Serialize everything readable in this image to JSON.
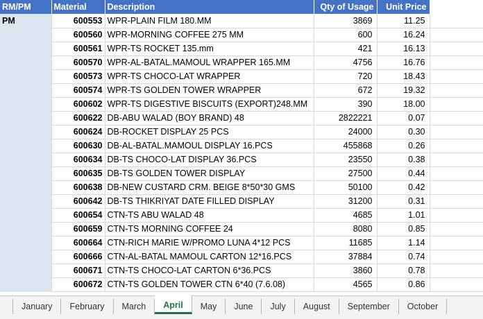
{
  "header": {
    "cat": "RM/PM",
    "material": "Material",
    "description": "Description",
    "qty": "Qty of Usage",
    "price": "Unit Price"
  },
  "category_label": "PM",
  "rows": [
    {
      "material": "600553",
      "description": "WPR-PLAIN FILM 180.MM",
      "qty": "3869",
      "price": "11.25"
    },
    {
      "material": "600560",
      "description": "WPR-MORNING COFFEE 275 MM",
      "qty": "600",
      "price": "16.24"
    },
    {
      "material": "600561",
      "description": "WPR-TS ROCKET 135.mm",
      "qty": "421",
      "price": "16.13"
    },
    {
      "material": "600570",
      "description": "WPR-AL-BATAL.MAMOUL WRAPPER 165.MM",
      "qty": "4756",
      "price": "16.76"
    },
    {
      "material": "600573",
      "description": "WPR-TS CHOCO-LAT WRAPPER",
      "qty": "720",
      "price": "18.43"
    },
    {
      "material": "600574",
      "description": "WPR-TS GOLDEN TOWER WRAPPER",
      "qty": "672",
      "price": "19.32"
    },
    {
      "material": "600602",
      "description": "WPR-TS DIGESTIVE BISCUITS (EXPORT)248.MM",
      "qty": "390",
      "price": "18.00"
    },
    {
      "material": "600622",
      "description": "DB-ABU WALAD (BOY BRAND) 48",
      "qty": "2822221",
      "price": "0.07"
    },
    {
      "material": "600624",
      "description": "DB-ROCKET DISPLAY 25 PCS",
      "qty": "24000",
      "price": "0.30"
    },
    {
      "material": "600630",
      "description": "DB-AL-BATAL.MAMOUL DISPLAY 16.PCS",
      "qty": "455868",
      "price": "0.26"
    },
    {
      "material": "600634",
      "description": "DB-TS CHOCO-LAT DISPLAY 36.PCS",
      "qty": "23550",
      "price": "0.38"
    },
    {
      "material": "600635",
      "description": "DB-TS GOLDEN TOWER DISPLAY",
      "qty": "27500",
      "price": "0.44"
    },
    {
      "material": "600638",
      "description": "DB-NEW CUSTARD CRM. BEIGE 8*50*30 GMS",
      "qty": "50100",
      "price": "0.42"
    },
    {
      "material": "600642",
      "description": "DB-TS THIKRIYAT DATE FILLED DISPLAY",
      "qty": "31200",
      "price": "0.31"
    },
    {
      "material": "600654",
      "description": "CTN-TS ABU WALAD 48",
      "qty": "4685",
      "price": "1.01"
    },
    {
      "material": "600659",
      "description": "CTN-TS MORNING COFFEE 24",
      "qty": "8080",
      "price": "0.85"
    },
    {
      "material": "600664",
      "description": "CTN-RICH MARIE W/PROMO LUNA 4*12 PCS",
      "qty": "11685",
      "price": "1.14"
    },
    {
      "material": "600666",
      "description": "CTN-AL-BATAL MAMOUL CARTON 12*16.PCS",
      "qty": "37884",
      "price": "0.74"
    },
    {
      "material": "600671",
      "description": "CTN-TS CHOCO-LAT CARTON 6*36.PCS",
      "qty": "3860",
      "price": "0.78"
    },
    {
      "material": "600672",
      "description": "CTN-TS GOLDEN TOWER CTN 6*40 (7.6.08)",
      "qty": "4565",
      "price": "0.86"
    }
  ],
  "tabs": [
    "January",
    "February",
    "March",
    "April",
    "May",
    "June",
    "July",
    "August",
    "September",
    "October"
  ],
  "active_tab": "April",
  "colors": {
    "header": "#4472c4",
    "category_fill": "#dce6f1",
    "active_tab": "#217346"
  }
}
